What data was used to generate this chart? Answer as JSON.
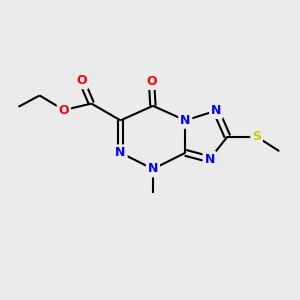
{
  "bg_color": "#ebebeb",
  "atom_colors": {
    "N": "#0000ff",
    "O": "#ff0000",
    "S": "#cccc00"
  },
  "bond_color": "#000000",
  "bond_width": 1.5,
  "font_size_atom": 9
}
